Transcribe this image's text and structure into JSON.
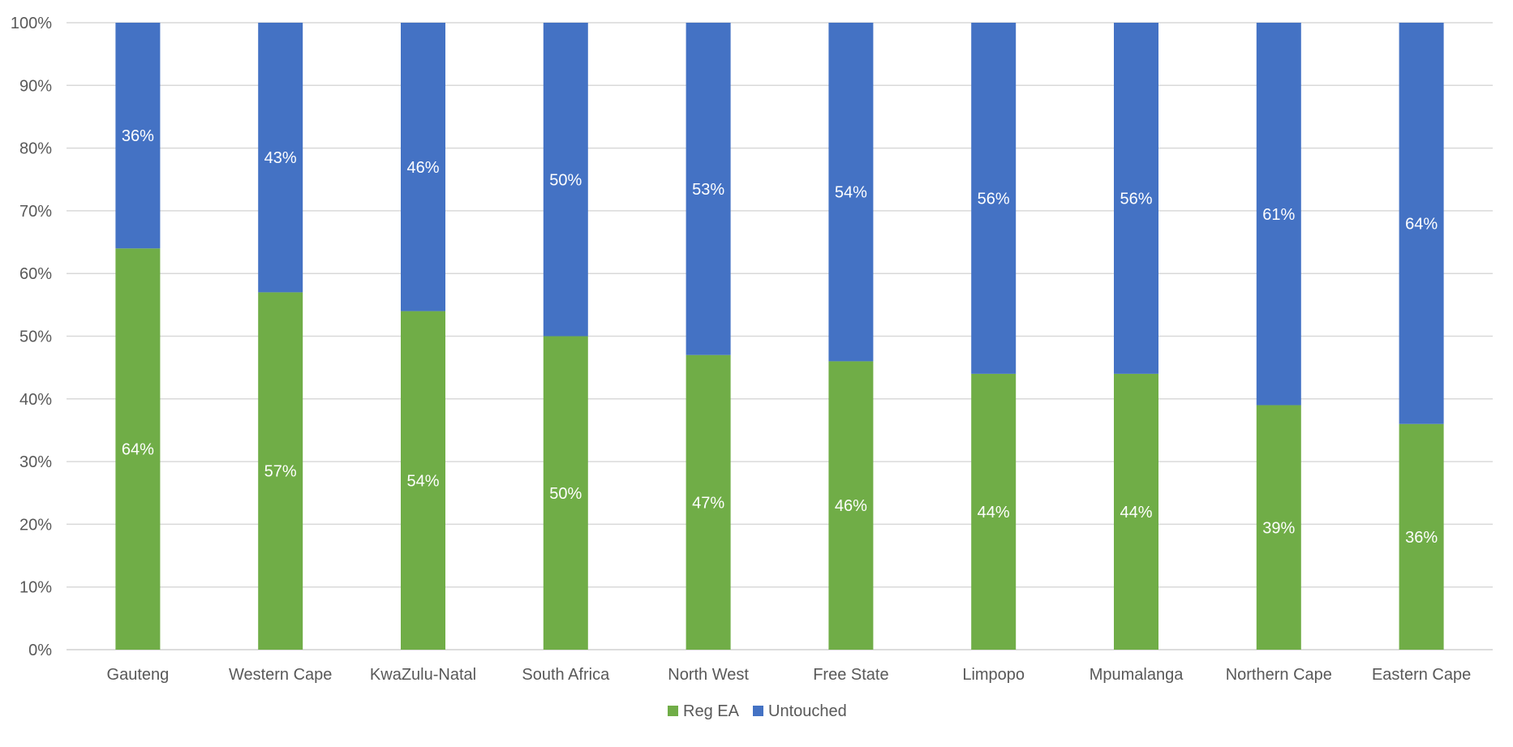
{
  "chart_data": {
    "type": "bar",
    "stacked": true,
    "percent_stacked": true,
    "categories": [
      "Gauteng",
      "Western Cape",
      "KwaZulu-Natal",
      "South Africa",
      "North West",
      "Free State",
      "Limpopo",
      "Mpumalanga",
      "Northern Cape",
      "Eastern Cape"
    ],
    "series": [
      {
        "name": "Reg EA",
        "color": "#70AD47",
        "values": [
          64,
          57,
          54,
          50,
          47,
          46,
          44,
          44,
          39,
          36
        ],
        "labels": [
          "64%",
          "57%",
          "54%",
          "50%",
          "47%",
          "46%",
          "44%",
          "44%",
          "39%",
          "36%"
        ]
      },
      {
        "name": "Untouched",
        "color": "#4472C4",
        "values": [
          36,
          43,
          46,
          50,
          53,
          54,
          56,
          56,
          61,
          64
        ],
        "labels": [
          "36%",
          "43%",
          "46%",
          "50%",
          "53%",
          "54%",
          "56%",
          "56%",
          "61%",
          "64%"
        ]
      }
    ],
    "y_ticks": [
      "0%",
      "10%",
      "20%",
      "30%",
      "40%",
      "50%",
      "60%",
      "70%",
      "80%",
      "90%",
      "100%"
    ],
    "ylim": [
      0,
      100
    ],
    "grid": true,
    "legend_position": "bottom",
    "title": "",
    "xlabel": "",
    "ylabel": ""
  }
}
